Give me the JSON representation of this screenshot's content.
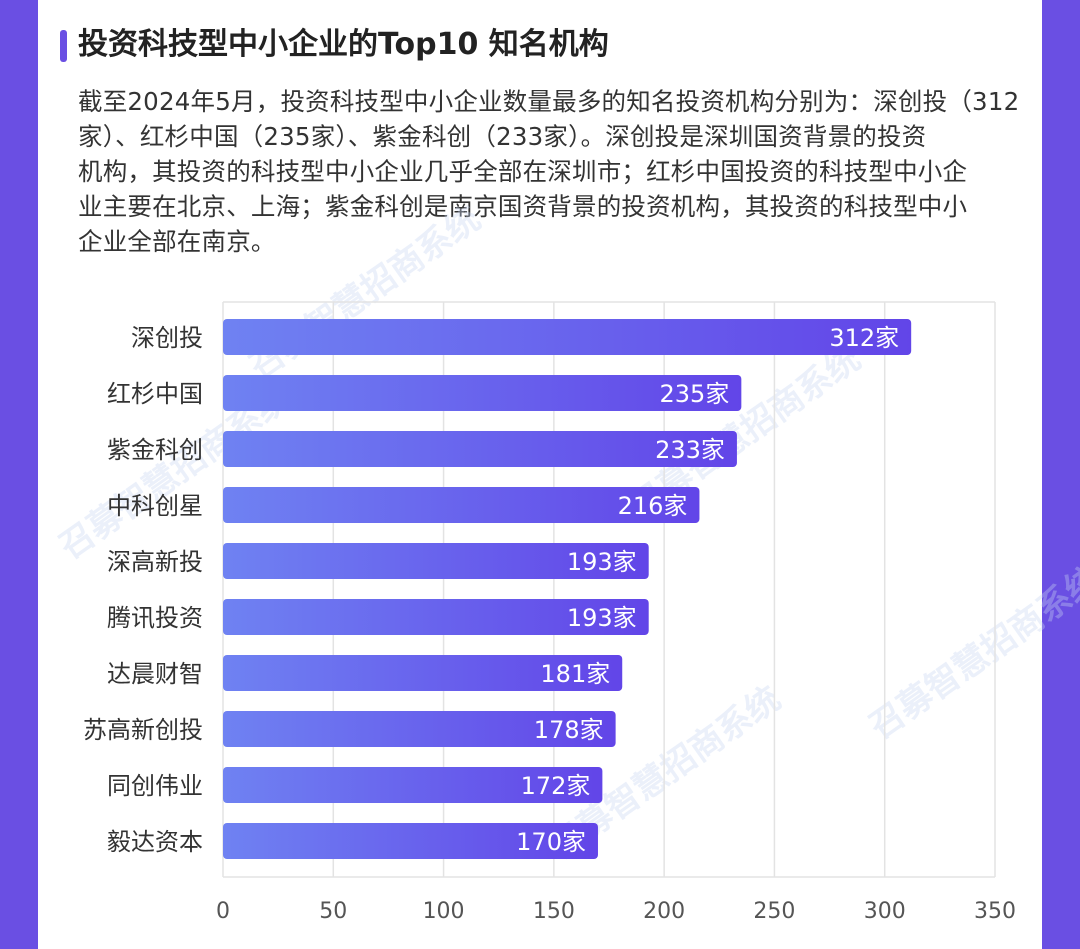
{
  "header": {
    "title": "投资科技型中小企业的Top10 知名机构"
  },
  "description": {
    "lines": [
      "截至2024年5月，投资科技型中小企业数量最多的知名投资机构分别为：深创投（312",
      "家）、红杉中国（235家）、紫金科创（233家）。深创投是深圳国资背景的投资",
      "机构，其投资的科技型中小企业几乎全部在深圳市；红杉中国投资的科技型中小企",
      "业主要在北京、上海；紫金科创是南京国资背景的投资机构，其投资的科技型中小",
      "企业全部在南京。"
    ]
  },
  "watermark": "召募智慧招商系统",
  "colors": {
    "page_bg": "#6a4fe3",
    "bar_start": "#6f82f2",
    "bar_end": "#6245e8",
    "grid": "#e3e3e3"
  },
  "chart_data": {
    "type": "bar",
    "orientation": "horizontal",
    "categories": [
      "深创投",
      "红杉中国",
      "紫金科创",
      "中科创星",
      "深高新投",
      "腾讯投资",
      "达晨财智",
      "苏高新创投",
      "同创伟业",
      "毅达资本"
    ],
    "values": [
      312,
      235,
      233,
      216,
      193,
      193,
      181,
      178,
      172,
      170
    ],
    "value_labels": [
      "312家",
      "235家",
      "233家",
      "216家",
      "193家",
      "193家",
      "181家",
      "178家",
      "172家",
      "170家"
    ],
    "xlim": [
      0,
      350
    ],
    "xticks": [
      "0",
      "50",
      "100",
      "150",
      "200",
      "250",
      "300",
      "350"
    ],
    "grid": true,
    "legend": "none"
  }
}
